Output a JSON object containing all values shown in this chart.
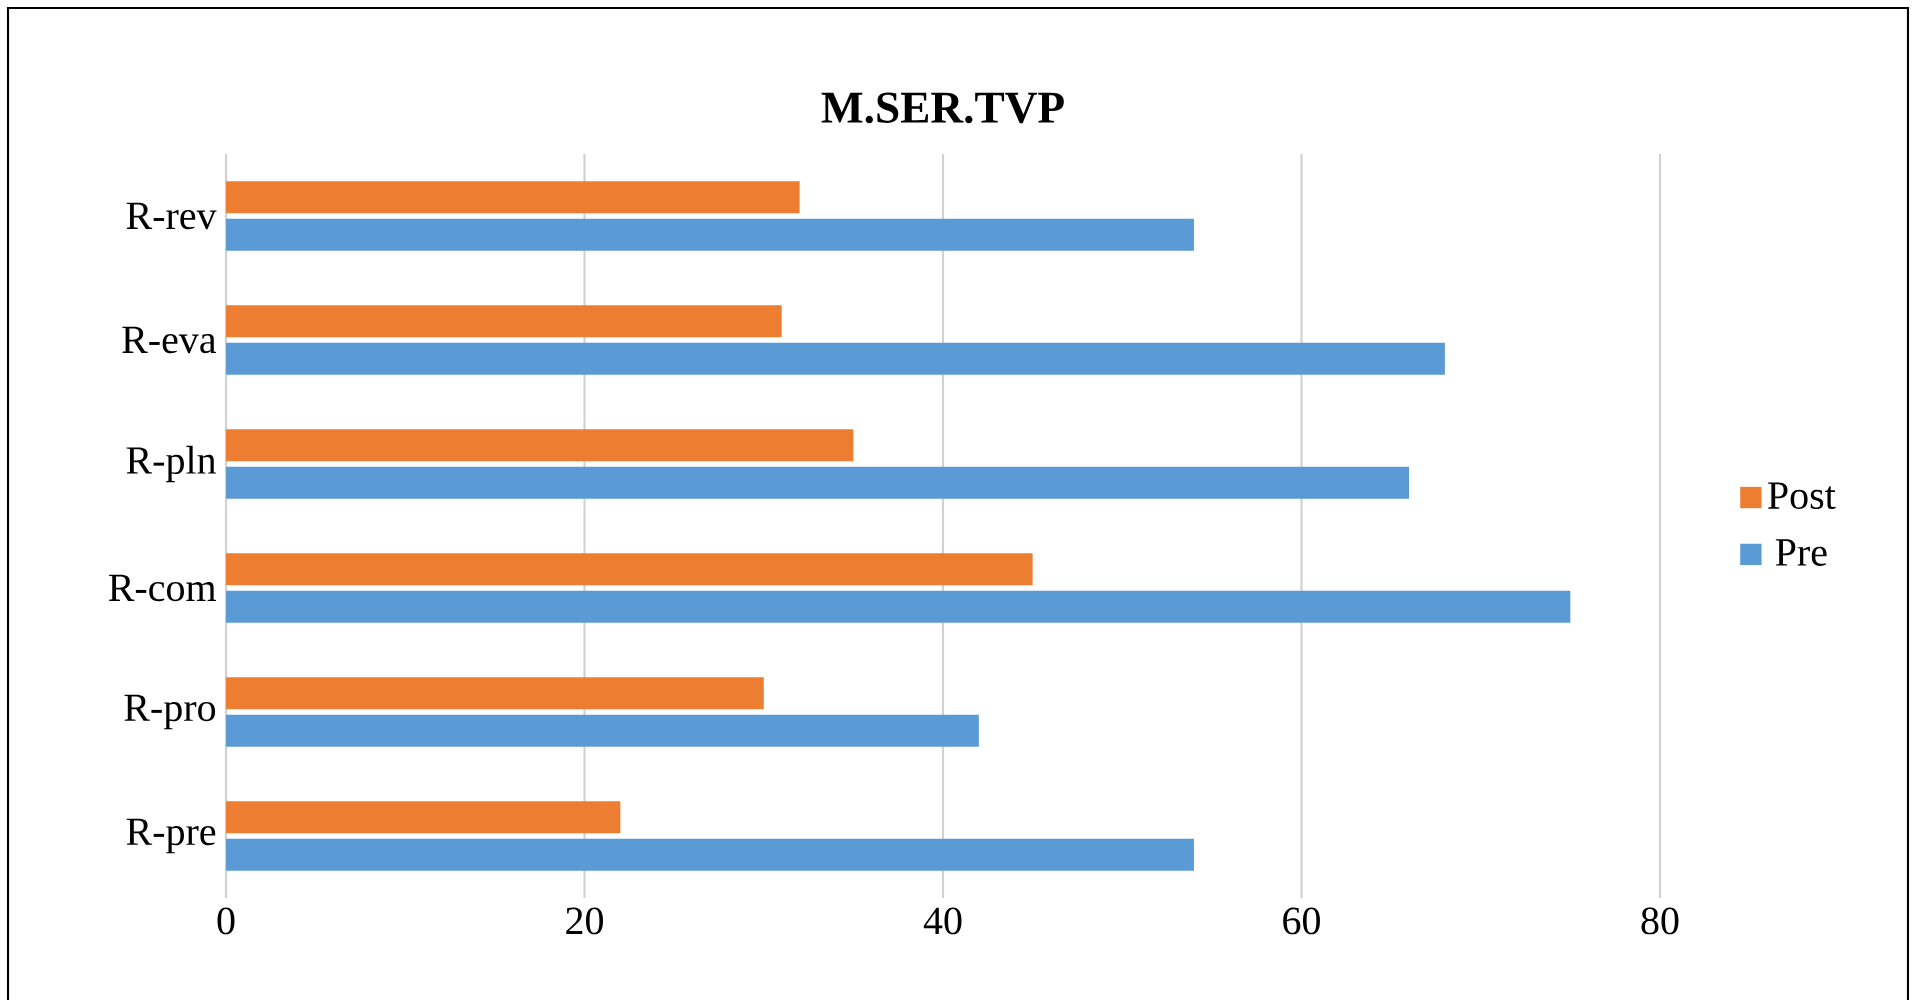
{
  "chart_data": {
    "type": "bar",
    "orientation": "horizontal",
    "title": "M.SER.TVP",
    "categories": [
      "R-rev",
      "R-eva",
      "R-pln",
      "R-com",
      "R-pro",
      "R-pre"
    ],
    "series": [
      {
        "name": "Pre",
        "color": "#5b9bd5",
        "values": [
          54,
          68,
          66,
          75,
          42,
          54
        ]
      },
      {
        "name": "Post",
        "color": "#ed7d31",
        "values": [
          32,
          31,
          35,
          45,
          30,
          22
        ]
      }
    ],
    "xlim": [
      0,
      80
    ],
    "xticks": [
      0,
      20,
      40,
      60,
      80
    ],
    "grid": "x",
    "legend": "right"
  }
}
